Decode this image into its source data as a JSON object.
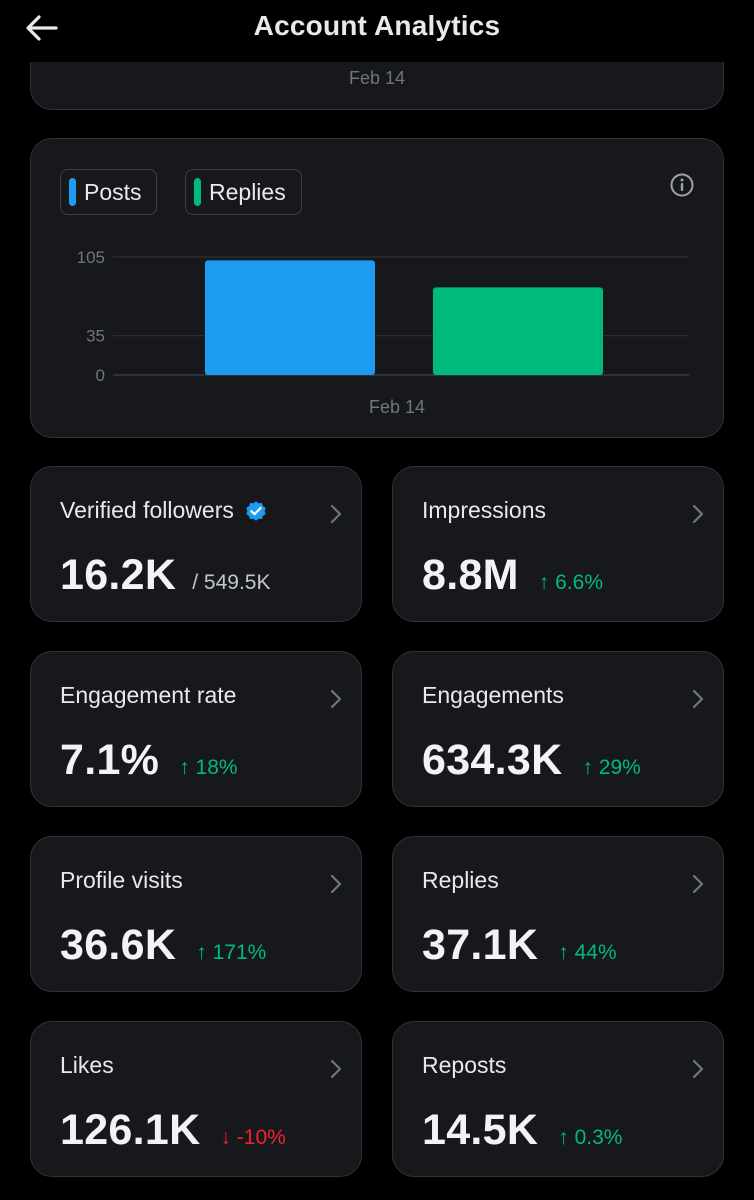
{
  "header": {
    "title": "Account Analytics"
  },
  "top_card": {
    "date": "Feb 14"
  },
  "chart": {
    "legend": {
      "posts": "Posts",
      "replies": "Replies"
    },
    "colors": {
      "posts": "#1d9bf0",
      "replies": "#00ba7c"
    },
    "y_ticks": [
      "105",
      "35",
      "0"
    ]
  },
  "chart_data": {
    "type": "bar",
    "categories": [
      "Feb 14"
    ],
    "series": [
      {
        "name": "Posts",
        "values": [
          102
        ]
      },
      {
        "name": "Replies",
        "values": [
          78
        ]
      }
    ],
    "ylim": [
      0,
      105
    ],
    "y_ticks": [
      0,
      35,
      105
    ],
    "grid": true,
    "legend_position": "top-left"
  },
  "tiles": {
    "verified_followers": {
      "label": "Verified followers",
      "value": "16.2K",
      "total": "/ 549.5K"
    },
    "impressions": {
      "label": "Impressions",
      "value": "8.8M",
      "change": "↑ 6.6%",
      "direction": "up"
    },
    "engagement_rate": {
      "label": "Engagement rate",
      "value": "7.1%",
      "change": "↑ 18%",
      "direction": "up"
    },
    "engagements": {
      "label": "Engagements",
      "value": "634.3K",
      "change": "↑ 29%",
      "direction": "up"
    },
    "profile_visits": {
      "label": "Profile visits",
      "value": "36.6K",
      "change": "↑ 171%",
      "direction": "up"
    },
    "replies": {
      "label": "Replies",
      "value": "37.1K",
      "change": "↑ 44%",
      "direction": "up"
    },
    "likes": {
      "label": "Likes",
      "value": "126.1K",
      "change": "↓ -10%",
      "direction": "down"
    },
    "reposts": {
      "label": "Reposts",
      "value": "14.5K",
      "change": "↑ 0.3%",
      "direction": "up"
    }
  }
}
